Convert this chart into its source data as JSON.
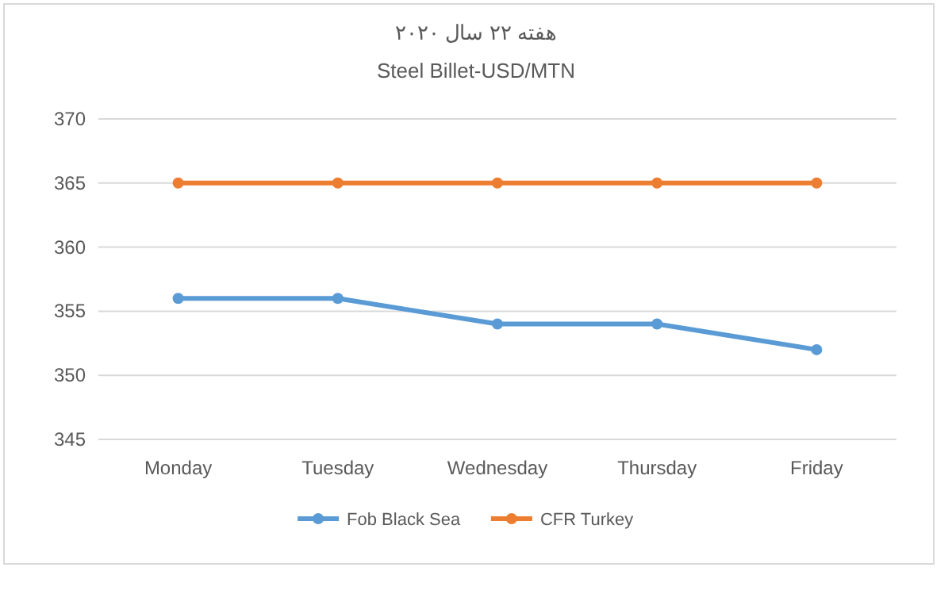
{
  "chart_data": {
    "type": "line",
    "title": "هفته ۲۲ سال ۲۰۲۰",
    "subtitle": "Steel Billet-USD/MTN",
    "categories": [
      "Monday",
      "Tuesday",
      "Wednesday",
      "Thursday",
      "Friday"
    ],
    "series": [
      {
        "name": "Fob Black Sea",
        "color": "#5b9bd5",
        "values": [
          356,
          356,
          354,
          354,
          352
        ]
      },
      {
        "name": "CFR Turkey",
        "color": "#ed7d31",
        "values": [
          365,
          365,
          365,
          365,
          365
        ]
      }
    ],
    "ylim": [
      345,
      370
    ],
    "yticks": [
      345,
      350,
      355,
      360,
      365,
      370
    ],
    "grid": "y",
    "legend": "bottom",
    "marker": "circle",
    "line_style": "solid"
  }
}
